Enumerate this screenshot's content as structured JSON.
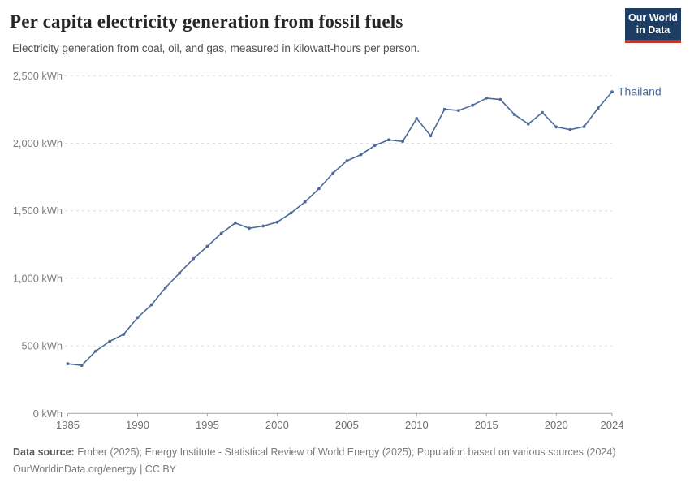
{
  "header": {
    "title": "Per capita electricity generation from fossil fuels",
    "subtitle": "Electricity generation from coal, oil, and gas, measured in kilowatt-hours per person."
  },
  "logo": {
    "line1": "Our World",
    "line2": "in Data",
    "bg_color": "#1d3d63",
    "accent_color": "#c0362d"
  },
  "chart_data": {
    "type": "line",
    "title": "Per capita electricity generation from fossil fuels",
    "unit": "kWh",
    "xlabel": "",
    "ylabel": "kWh",
    "xlim": [
      1985,
      2024
    ],
    "ylim": [
      0,
      2500
    ],
    "grid": "horizontal dashed",
    "legend_position": "end-of-line label",
    "x": [
      1985,
      1986,
      1987,
      1988,
      1989,
      1990,
      1991,
      1992,
      1993,
      1994,
      1995,
      1996,
      1997,
      1998,
      1999,
      2000,
      2001,
      2002,
      2003,
      2004,
      2005,
      2006,
      2007,
      2008,
      2009,
      2010,
      2011,
      2012,
      2013,
      2014,
      2015,
      2016,
      2017,
      2018,
      2019,
      2020,
      2021,
      2022,
      2023,
      2024
    ],
    "series": [
      {
        "name": "Thailand",
        "color": "#4c6a9c",
        "values": [
          368,
          355,
          461,
          533,
          585,
          709,
          804,
          930,
          1038,
          1145,
          1237,
          1333,
          1410,
          1371,
          1387,
          1416,
          1484,
          1566,
          1664,
          1778,
          1870,
          1915,
          1983,
          2025,
          2013,
          2183,
          2055,
          2252,
          2243,
          2281,
          2334,
          2324,
          2213,
          2143,
          2228,
          2121,
          2101,
          2123,
          2261,
          2381
        ]
      }
    ],
    "yticks": [
      0,
      500,
      1000,
      1500,
      2000,
      2500
    ],
    "ytick_labels": [
      "0 kWh",
      "500 kWh",
      "1,000 kWh",
      "1,500 kWh",
      "2,000 kWh",
      "2,500 kWh"
    ],
    "xticks": [
      1985,
      1990,
      1995,
      2000,
      2005,
      2010,
      2015,
      2020,
      2024
    ],
    "xtick_labels": [
      "1985",
      "1990",
      "1995",
      "2000",
      "2005",
      "2010",
      "2015",
      "2020",
      "2024"
    ],
    "end_label": "Thailand"
  },
  "colors": {
    "line": "#4c6a9c",
    "gridline": "#dcdcdc",
    "axis": "#a3a3a3",
    "tick_label": "#6f6f6f"
  },
  "footer": {
    "datasource_label": "Data source:",
    "datasource_text": " Ember (2025); Energy Institute - Statistical Review of World Energy (2025); Population based on various sources (2024)",
    "license_line": "OurWorldinData.org/energy | CC BY"
  }
}
